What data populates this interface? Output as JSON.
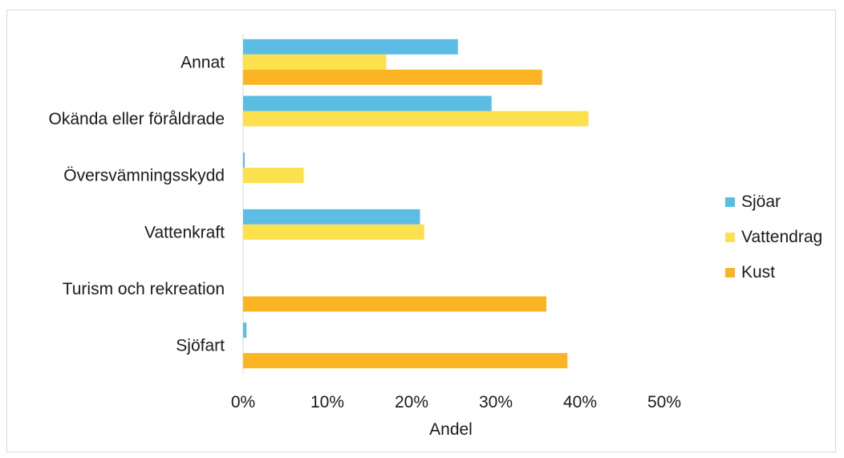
{
  "chart_data": {
    "type": "bar",
    "orientation": "horizontal",
    "categories": [
      "Annat",
      "Okända eller föråldrade",
      "Översvämningsskydd",
      "Vattenkraft",
      "Turism och rekreation",
      "Sjöfart"
    ],
    "series": [
      {
        "name": "Sjöar",
        "color": "#5bbde4",
        "values": [
          25.5,
          29.5,
          0.2,
          21,
          0,
          0.4
        ]
      },
      {
        "name": "Vattendrag",
        "color": "#fce04d",
        "values": [
          17,
          41,
          7.2,
          21.5,
          0,
          0
        ]
      },
      {
        "name": "Kust",
        "color": "#fbb424",
        "values": [
          35.5,
          0,
          0,
          0,
          36,
          38.5
        ]
      }
    ],
    "xlabel": "Andel",
    "xlim": [
      0,
      50
    ],
    "xticks": [
      "0%",
      "10%",
      "20%",
      "30%",
      "40%",
      "50%"
    ],
    "grid": false,
    "legend_position": "right"
  }
}
